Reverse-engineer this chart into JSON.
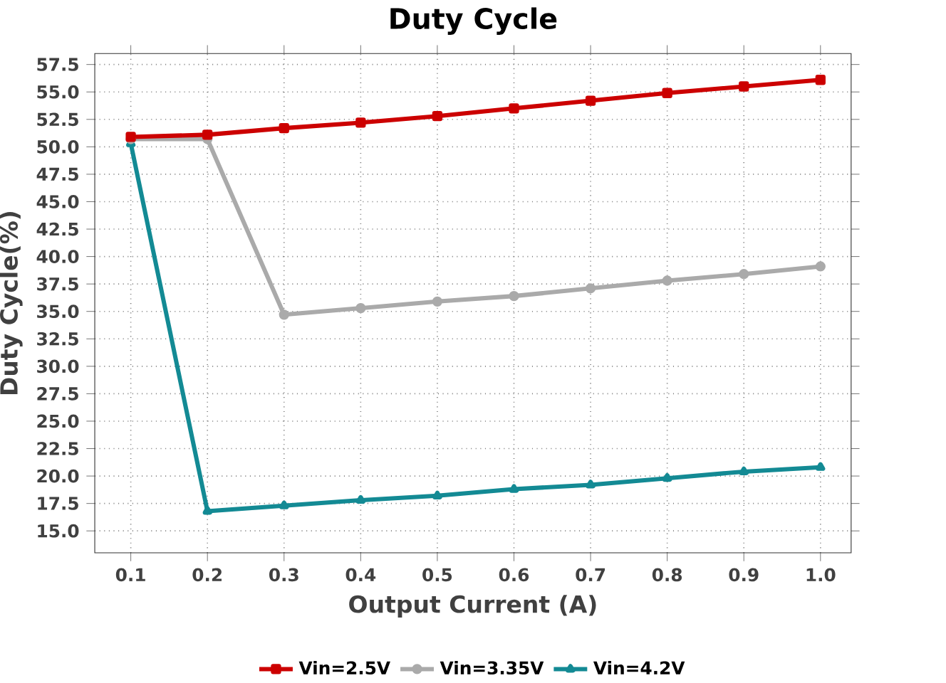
{
  "chart_data": {
    "type": "line",
    "title": "Duty Cycle",
    "xlabel": "Output Current (A)",
    "ylabel": "Duty Cycle(%)",
    "x": [
      0.1,
      0.2,
      0.3,
      0.4,
      0.5,
      0.6,
      0.7,
      0.8,
      0.9,
      1.0
    ],
    "xlim": [
      0.053,
      1.04
    ],
    "xticks": [
      {
        "value": 0.1,
        "label": "0.1"
      },
      {
        "value": 0.2,
        "label": "0.2"
      },
      {
        "value": 0.3,
        "label": "0.3"
      },
      {
        "value": 0.4,
        "label": "0.4"
      },
      {
        "value": 0.5,
        "label": "0.5"
      },
      {
        "value": 0.6,
        "label": "0.6"
      },
      {
        "value": 0.7,
        "label": "0.7"
      },
      {
        "value": 0.8,
        "label": "0.8"
      },
      {
        "value": 0.9,
        "label": "0.9"
      },
      {
        "value": 1.0,
        "label": "1.0"
      }
    ],
    "ylim": [
      13,
      58.5
    ],
    "yticks": [
      {
        "value": 15,
        "label": "15.0"
      },
      {
        "value": 17.5,
        "label": "17.5"
      },
      {
        "value": 20,
        "label": "20.0"
      },
      {
        "value": 22.5,
        "label": "22.5"
      },
      {
        "value": 25,
        "label": "25.0"
      },
      {
        "value": 27.5,
        "label": "27.5"
      },
      {
        "value": 30,
        "label": "30.0"
      },
      {
        "value": 32.5,
        "label": "32.5"
      },
      {
        "value": 35,
        "label": "35.0"
      },
      {
        "value": 37.5,
        "label": "37.5"
      },
      {
        "value": 40,
        "label": "40.0"
      },
      {
        "value": 42.5,
        "label": "42.5"
      },
      {
        "value": 45,
        "label": "45.0"
      },
      {
        "value": 47.5,
        "label": "47.5"
      },
      {
        "value": 50,
        "label": "50.0"
      },
      {
        "value": 52.5,
        "label": "52.5"
      },
      {
        "value": 55,
        "label": "55.0"
      },
      {
        "value": 57.5,
        "label": "57.5"
      }
    ],
    "grid": true,
    "legend": "bottom",
    "line_style": "solid",
    "series": [
      {
        "name": "Vin=2.5V",
        "color": "#cc0000",
        "marker": "square",
        "values": [
          50.9,
          51.1,
          51.7,
          52.2,
          52.8,
          53.5,
          54.2,
          54.9,
          55.5,
          56.1
        ]
      },
      {
        "name": "Vin=3.35V",
        "color": "#aaaaaa",
        "marker": "circle",
        "values": [
          50.7,
          50.7,
          34.7,
          35.3,
          35.9,
          36.4,
          37.1,
          37.8,
          38.4,
          39.1
        ]
      },
      {
        "name": "Vin=4.2V",
        "color": "#138a94",
        "marker": "triangle",
        "values": [
          50.3,
          16.8,
          17.3,
          17.8,
          18.2,
          18.8,
          19.2,
          19.8,
          20.4,
          20.8
        ]
      }
    ]
  }
}
